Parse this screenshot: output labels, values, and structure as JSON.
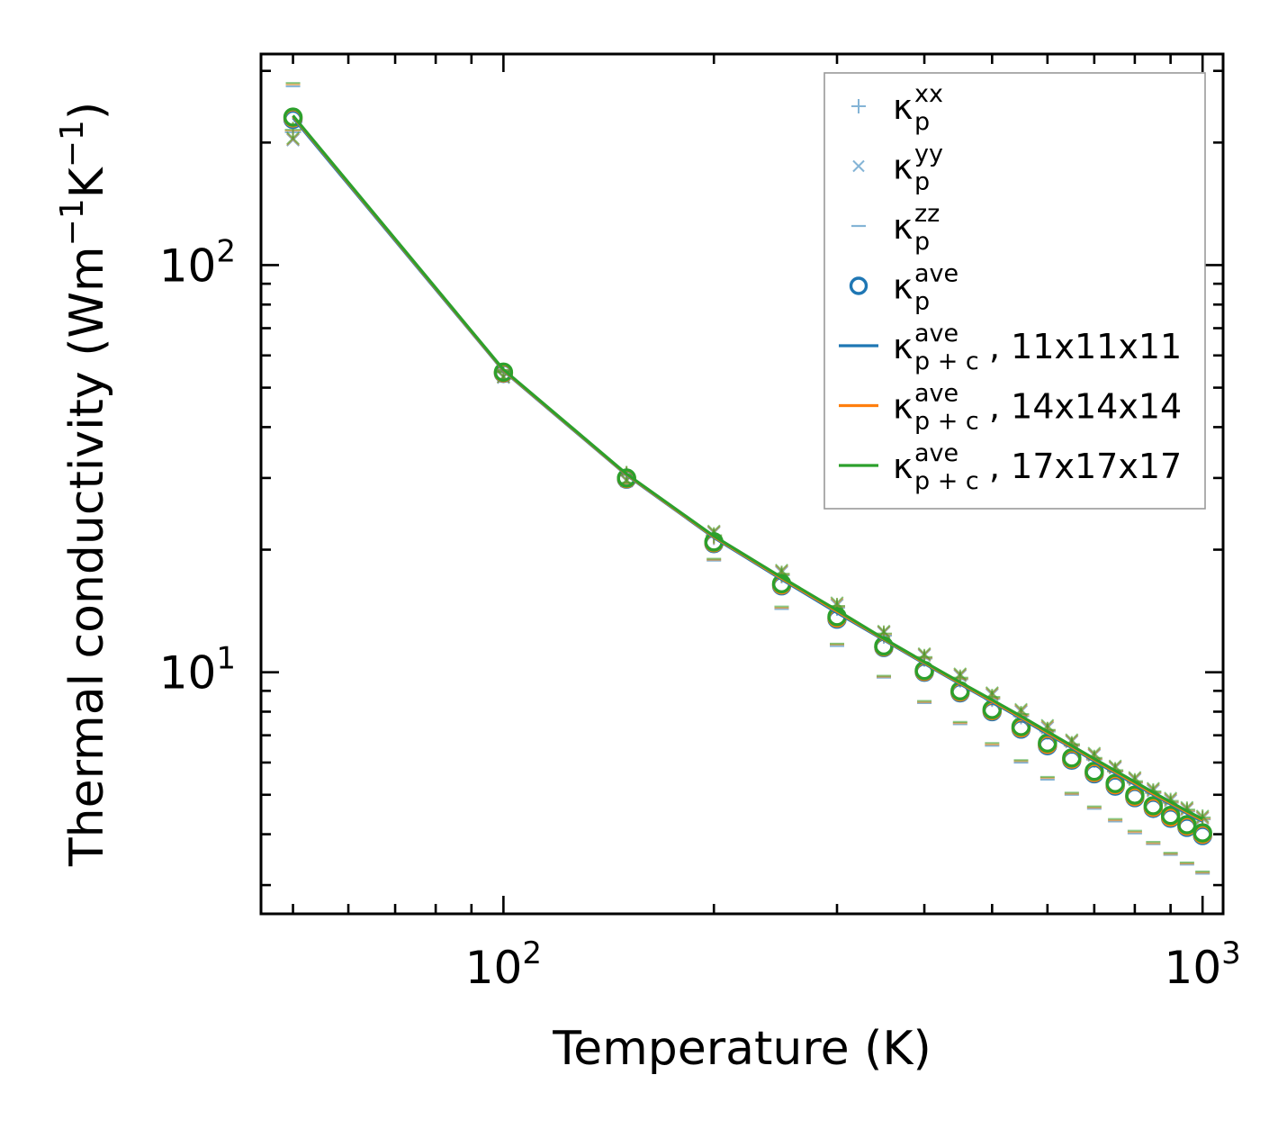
{
  "chart_data": {
    "type": "line",
    "xscale": "log",
    "yscale": "log",
    "xlim": [
      45,
      1070
    ],
    "ylim": [
      2.55,
      330
    ],
    "xlabel": "Temperature (K)",
    "ylabel": {
      "pre": "Thermal conductivity (Wm",
      "exp1": "−1",
      "mid": "K",
      "exp2": "−1",
      "post": ")"
    },
    "xticks": [
      {
        "value": 100,
        "base": "10",
        "exp": "2"
      },
      {
        "value": 1000,
        "base": "10",
        "exp": "3"
      }
    ],
    "yticks": [
      {
        "value": 10,
        "base": "10",
        "exp": "1"
      },
      {
        "value": 100,
        "base": "10",
        "exp": "2"
      }
    ],
    "legend_location": "upper right",
    "x": [
      50,
      100,
      150,
      200,
      250,
      300,
      350,
      400,
      450,
      500,
      550,
      600,
      650,
      700,
      750,
      800,
      850,
      900,
      950,
      1000
    ],
    "colors": {
      "series1": "#1f77b4",
      "series2": "#ff7f0e",
      "series3": "#2ca02c"
    },
    "series": [
      {
        "name": "κp+c ave, 11x11x11",
        "color": "#1f77b4",
        "kxx": [
          212,
          54.5,
          30.5,
          21.5,
          17.3,
          14.4,
          12.3,
          10.8,
          9.6,
          8.6,
          7.8,
          7.15,
          6.6,
          6.1,
          5.7,
          5.35,
          5.05,
          4.78,
          4.55,
          4.35
        ],
        "kyy": [
          203,
          53.0,
          29.5,
          22.0,
          17.6,
          14.6,
          12.5,
          11.0,
          9.8,
          8.8,
          8.0,
          7.3,
          6.75,
          6.25,
          5.82,
          5.45,
          5.12,
          4.84,
          4.6,
          4.38
        ],
        "kzz": [
          275,
          55.0,
          29.0,
          18.8,
          14.3,
          11.6,
          9.7,
          8.4,
          7.45,
          6.6,
          6.0,
          5.45,
          5.0,
          4.62,
          4.3,
          4.02,
          3.78,
          3.56,
          3.37,
          3.2
        ],
        "kave": [
          228,
          54.2,
          29.8,
          20.7,
          16.3,
          13.5,
          11.5,
          10.0,
          8.9,
          8.0,
          7.25,
          6.6,
          6.08,
          5.63,
          5.25,
          4.92,
          4.63,
          4.38,
          4.16,
          3.97
        ],
        "kpc": [
          230,
          55.0,
          30.5,
          21.4,
          16.9,
          14.0,
          12.0,
          10.5,
          9.35,
          8.45,
          7.7,
          7.05,
          6.52,
          6.05,
          5.65,
          5.3,
          5.0,
          4.74,
          4.5,
          4.3
        ]
      },
      {
        "name": "κp+c ave, 14x14x14",
        "color": "#ff7f0e",
        "kxx": [
          214,
          54.6,
          30.6,
          21.6,
          17.4,
          14.5,
          12.4,
          10.85,
          9.65,
          8.65,
          7.85,
          7.2,
          6.63,
          6.13,
          5.72,
          5.37,
          5.07,
          4.8,
          4.57,
          4.37
        ],
        "kyy": [
          204,
          53.2,
          29.6,
          22.1,
          17.7,
          14.7,
          12.55,
          11.05,
          9.85,
          8.85,
          8.05,
          7.35,
          6.78,
          6.28,
          5.85,
          5.48,
          5.15,
          4.87,
          4.62,
          4.4
        ],
        "kzz": [
          278,
          55.2,
          29.1,
          18.9,
          14.4,
          11.7,
          9.75,
          8.45,
          7.5,
          6.65,
          6.05,
          5.5,
          5.03,
          4.65,
          4.33,
          4.05,
          3.8,
          3.58,
          3.39,
          3.22
        ],
        "kave": [
          230,
          54.4,
          29.9,
          20.8,
          16.4,
          13.6,
          11.55,
          10.05,
          8.95,
          8.05,
          7.3,
          6.65,
          6.12,
          5.67,
          5.29,
          4.95,
          4.66,
          4.41,
          4.19,
          4.0
        ],
        "kpc": [
          232,
          55.2,
          30.6,
          21.5,
          17.0,
          14.1,
          12.05,
          10.55,
          9.4,
          8.5,
          7.75,
          7.1,
          6.56,
          6.09,
          5.69,
          5.34,
          5.03,
          4.77,
          4.53,
          4.33
        ]
      },
      {
        "name": "κp+c ave, 17x17x17",
        "color": "#2ca02c",
        "kxx": [
          215,
          54.7,
          30.7,
          21.7,
          17.45,
          14.55,
          12.45,
          10.9,
          9.7,
          8.7,
          7.9,
          7.22,
          6.66,
          6.16,
          5.75,
          5.4,
          5.1,
          4.83,
          4.6,
          4.4
        ],
        "kyy": [
          205,
          53.3,
          29.7,
          22.2,
          17.8,
          14.8,
          12.6,
          11.1,
          9.9,
          8.9,
          8.1,
          7.4,
          6.82,
          6.32,
          5.88,
          5.51,
          5.18,
          4.9,
          4.65,
          4.43
        ],
        "kzz": [
          280,
          55.3,
          29.2,
          19.0,
          14.5,
          11.75,
          9.8,
          8.5,
          7.55,
          6.7,
          6.08,
          5.53,
          5.06,
          4.68,
          4.36,
          4.08,
          3.83,
          3.6,
          3.41,
          3.24
        ],
        "kave": [
          231,
          54.6,
          30.0,
          20.9,
          16.5,
          13.7,
          11.6,
          10.1,
          9.0,
          8.1,
          7.35,
          6.7,
          6.16,
          5.71,
          5.33,
          4.99,
          4.7,
          4.45,
          4.22,
          4.03
        ],
        "kpc": [
          233,
          55.4,
          30.7,
          21.6,
          17.1,
          14.2,
          12.1,
          10.6,
          9.45,
          8.55,
          7.8,
          7.15,
          6.6,
          6.13,
          5.73,
          5.38,
          5.07,
          4.8,
          4.56,
          4.36
        ]
      }
    ],
    "legend": [
      {
        "marker": "plus",
        "color": "#1f77b4",
        "base": "κ",
        "sub": "p",
        "sup": "xx",
        "suffix": ""
      },
      {
        "marker": "cross",
        "color": "#1f77b4",
        "base": "κ",
        "sub": "p",
        "sup": "yy",
        "suffix": ""
      },
      {
        "marker": "hline",
        "color": "#1f77b4",
        "base": "κ",
        "sub": "p",
        "sup": "zz",
        "suffix": ""
      },
      {
        "marker": "circle",
        "color": "#1f77b4",
        "base": "κ",
        "sub": "p",
        "sup": "ave",
        "suffix": ""
      },
      {
        "marker": "line",
        "color": "#1f77b4",
        "base": "κ",
        "sub": "p + c",
        "sup": "ave",
        "suffix": ", 11x11x11"
      },
      {
        "marker": "line",
        "color": "#ff7f0e",
        "base": "κ",
        "sub": "p + c",
        "sup": "ave",
        "suffix": ", 14x14x14"
      },
      {
        "marker": "line",
        "color": "#2ca02c",
        "base": "κ",
        "sub": "p + c",
        "sup": "ave",
        "suffix": ", 17x17x17"
      }
    ]
  }
}
